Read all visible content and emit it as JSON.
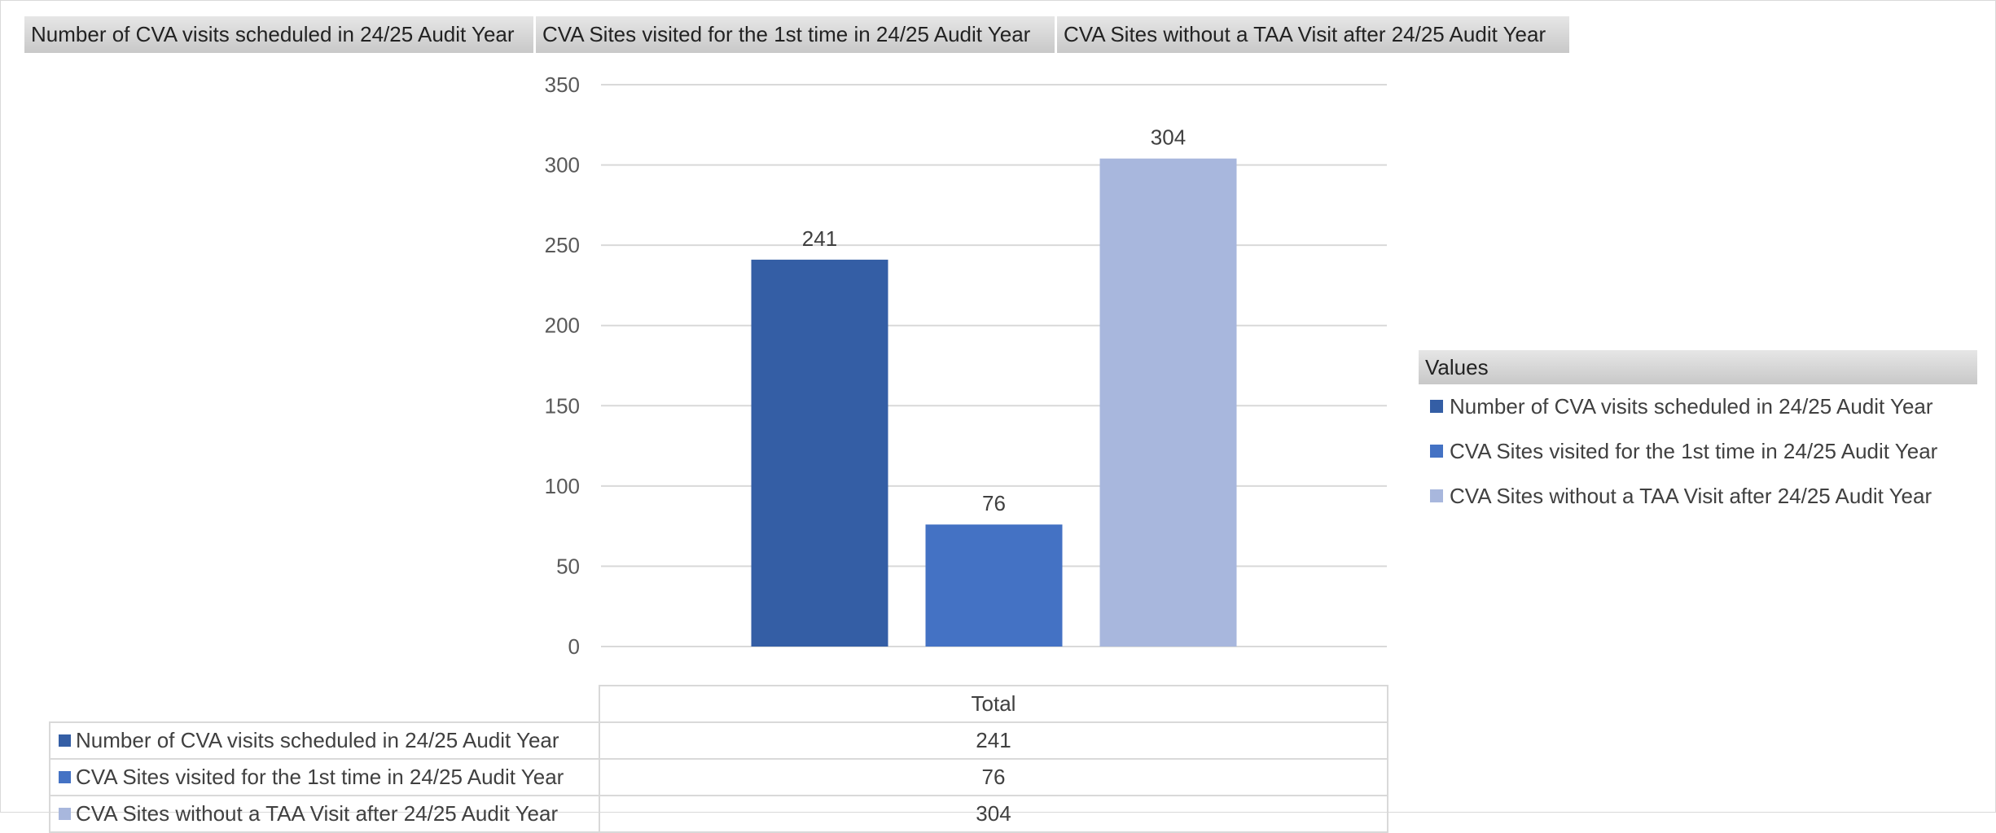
{
  "field_buttons": [
    "Number of CVA visits scheduled in 24/25 Audit Year",
    "CVA Sites visited for the 1st time in 24/25 Audit Year",
    "CVA Sites without a TAA Visit after 24/25 Audit Year"
  ],
  "colors": {
    "series1": "#345ea5",
    "series2": "#4472c4",
    "series3": "#a8b7dd",
    "gridline": "#d9d9d9",
    "axis_text": "#595959"
  },
  "chart_data": {
    "type": "bar",
    "categories": [
      "Total"
    ],
    "series": [
      {
        "name": "Number of CVA visits scheduled in 24/25 Audit Year",
        "values": [
          241
        ]
      },
      {
        "name": "CVA Sites visited for the 1st time in 24/25 Audit Year",
        "values": [
          76
        ]
      },
      {
        "name": "CVA Sites without a TAA Visit after 24/25 Audit Year",
        "values": [
          304
        ]
      }
    ],
    "data_labels": [
      "241",
      "76",
      "304"
    ],
    "ylim": [
      0,
      350
    ],
    "yticks": [
      "0",
      "50",
      "100",
      "150",
      "200",
      "250",
      "300",
      "350"
    ],
    "grid": true,
    "legend_position": "right",
    "legend_title": "Values",
    "data_table": true
  },
  "legend": {
    "title": "Values",
    "items": [
      "Number of CVA visits scheduled in 24/25 Audit Year",
      "CVA Sites visited for the 1st time in 24/25 Audit Year",
      "CVA Sites without a TAA Visit after 24/25 Audit Year"
    ]
  },
  "data_table": {
    "header": "Total",
    "rows": [
      {
        "label": "Number of CVA visits scheduled in 24/25 Audit Year",
        "value": "241"
      },
      {
        "label": "CVA Sites visited for the 1st time in 24/25 Audit Year",
        "value": "76"
      },
      {
        "label": "CVA Sites without a TAA Visit after 24/25 Audit Year",
        "value": "304"
      }
    ]
  }
}
